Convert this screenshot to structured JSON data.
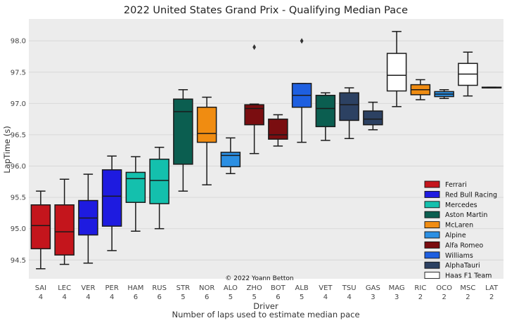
{
  "chart_data": {
    "type": "box",
    "title": "2022 United States Grand Prix - Qualifying Median Pace",
    "ylabel": "LapTime (s)",
    "xlabel": "Driver",
    "xlabel_sub": "Number of laps used to estimate median pace",
    "credit": "© 2022 Yoann Betton",
    "ylim": [
      94.2,
      98.35
    ],
    "yticks": [
      "94.5",
      "95.0",
      "95.5",
      "96.0",
      "96.5",
      "97.0",
      "97.5",
      "98.0"
    ],
    "grid": true,
    "legend_position": "bottom-right",
    "teams": [
      {
        "name": "Ferrari",
        "color": "#c4151c"
      },
      {
        "name": "Red Bull Racing",
        "color": "#1e1be0"
      },
      {
        "name": "Mercedes",
        "color": "#14c0ad"
      },
      {
        "name": "Aston Martin",
        "color": "#0b5e50"
      },
      {
        "name": "McLaren",
        "color": "#f08c11"
      },
      {
        "name": "Alpine",
        "color": "#2b8fe3"
      },
      {
        "name": "Alfa Romeo",
        "color": "#7a0d10"
      },
      {
        "name": "Williams",
        "color": "#1e5fe0"
      },
      {
        "name": "AlphaTauri",
        "color": "#2c4162"
      },
      {
        "name": "Haas F1 Team",
        "color": "#ffffff"
      }
    ],
    "drivers": [
      {
        "code": "SAI",
        "laps": "4",
        "team": "Ferrari",
        "whisker_low": 94.36,
        "q1": 94.68,
        "median": 95.05,
        "q3": 95.38,
        "whisker_high": 95.6,
        "outliers": []
      },
      {
        "code": "LEC",
        "laps": "4",
        "team": "Ferrari",
        "whisker_low": 94.43,
        "q1": 94.58,
        "median": 94.95,
        "q3": 95.38,
        "whisker_high": 95.79,
        "outliers": []
      },
      {
        "code": "VER",
        "laps": "4",
        "team": "Red Bull Racing",
        "whisker_low": 94.45,
        "q1": 94.9,
        "median": 95.17,
        "q3": 95.45,
        "whisker_high": 95.87,
        "outliers": []
      },
      {
        "code": "PER",
        "laps": "4",
        "team": "Red Bull Racing",
        "whisker_low": 94.65,
        "q1": 95.04,
        "median": 95.52,
        "q3": 95.94,
        "whisker_high": 96.16,
        "outliers": []
      },
      {
        "code": "HAM",
        "laps": "6",
        "team": "Mercedes",
        "whisker_low": 94.96,
        "q1": 95.42,
        "median": 95.8,
        "q3": 95.9,
        "whisker_high": 96.15,
        "outliers": []
      },
      {
        "code": "RUS",
        "laps": "6",
        "team": "Mercedes",
        "whisker_low": 95.0,
        "q1": 95.4,
        "median": 95.77,
        "q3": 96.11,
        "whisker_high": 96.3,
        "outliers": []
      },
      {
        "code": "STR",
        "laps": "5",
        "team": "Aston Martin",
        "whisker_low": 95.6,
        "q1": 96.03,
        "median": 96.87,
        "q3": 97.07,
        "whisker_high": 97.22,
        "outliers": []
      },
      {
        "code": "NOR",
        "laps": "6",
        "team": "McLaren",
        "whisker_low": 95.7,
        "q1": 96.38,
        "median": 96.52,
        "q3": 96.94,
        "whisker_high": 97.1,
        "outliers": []
      },
      {
        "code": "ALO",
        "laps": "5",
        "team": "Alpine",
        "whisker_low": 95.88,
        "q1": 95.99,
        "median": 96.17,
        "q3": 96.22,
        "whisker_high": 96.45,
        "outliers": []
      },
      {
        "code": "ZHO",
        "laps": "5",
        "team": "Alfa Romeo",
        "whisker_low": 96.2,
        "q1": 96.66,
        "median": 96.92,
        "q3": 96.98,
        "whisker_high": 96.99,
        "outliers": [
          97.9
        ]
      },
      {
        "code": "BOT",
        "laps": "6",
        "team": "Alfa Romeo",
        "whisker_low": 96.32,
        "q1": 96.43,
        "median": 96.5,
        "q3": 96.75,
        "whisker_high": 96.82,
        "outliers": []
      },
      {
        "code": "ALB",
        "laps": "5",
        "team": "Williams",
        "whisker_low": 96.38,
        "q1": 96.94,
        "median": 97.13,
        "q3": 97.32,
        "whisker_high": 97.32,
        "outliers": [
          98.0
        ]
      },
      {
        "code": "VET",
        "laps": "4",
        "team": "Aston Martin",
        "whisker_low": 96.41,
        "q1": 96.63,
        "median": 96.92,
        "q3": 97.13,
        "whisker_high": 97.17,
        "outliers": []
      },
      {
        "code": "TSU",
        "laps": "4",
        "team": "AlphaTauri",
        "whisker_low": 96.44,
        "q1": 96.73,
        "median": 96.98,
        "q3": 97.17,
        "whisker_high": 97.25,
        "outliers": []
      },
      {
        "code": "GAS",
        "laps": "3",
        "team": "AlphaTauri",
        "whisker_low": 96.58,
        "q1": 96.66,
        "median": 96.75,
        "q3": 96.88,
        "whisker_high": 97.02,
        "outliers": []
      },
      {
        "code": "MAG",
        "laps": "3",
        "team": "Haas F1 Team",
        "whisker_low": 96.95,
        "q1": 97.2,
        "median": 97.45,
        "q3": 97.8,
        "whisker_high": 98.15,
        "outliers": []
      },
      {
        "code": "RIC",
        "laps": "2",
        "team": "McLaren",
        "whisker_low": 97.06,
        "q1": 97.14,
        "median": 97.22,
        "q3": 97.3,
        "whisker_high": 97.38,
        "outliers": []
      },
      {
        "code": "OCO",
        "laps": "2",
        "team": "Alpine",
        "whisker_low": 97.08,
        "q1": 97.11,
        "median": 97.15,
        "q3": 97.19,
        "whisker_high": 97.22,
        "outliers": []
      },
      {
        "code": "MSC",
        "laps": "2",
        "team": "Haas F1 Team",
        "whisker_low": 97.12,
        "q1": 97.29,
        "median": 97.47,
        "q3": 97.64,
        "whisker_high": 97.82,
        "outliers": []
      },
      {
        "code": "LAT",
        "laps": "2",
        "team": "Williams",
        "whisker_low": 97.25,
        "q1": 97.25,
        "median": 97.25,
        "q3": 97.26,
        "whisker_high": 97.26,
        "outliers": []
      }
    ]
  }
}
